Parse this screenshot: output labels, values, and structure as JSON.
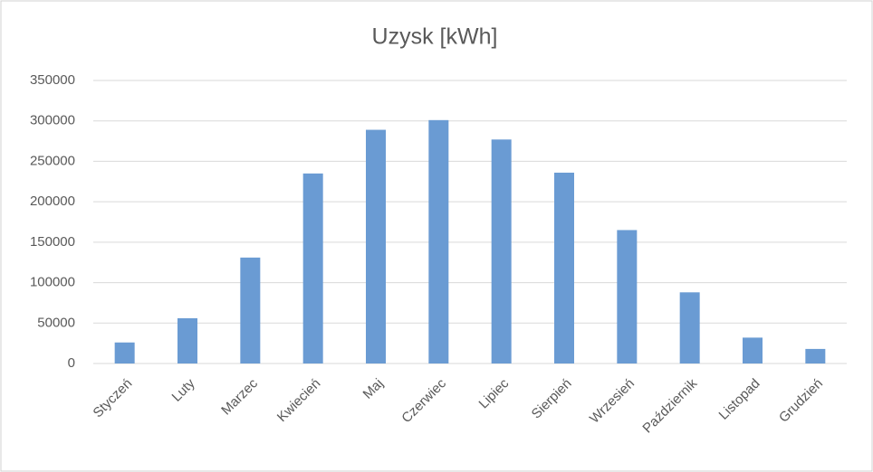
{
  "chart_data": {
    "type": "bar",
    "title": "Uzysk [kWh]",
    "categories": [
      "Styczeń",
      "Luty",
      "Marzec",
      "Kwiecień",
      "Maj",
      "Czerwiec",
      "Lipiec",
      "Sierpień",
      "Wrzesień",
      "Październik",
      "Listopad",
      "Grudzień"
    ],
    "values": [
      26000,
      56000,
      131000,
      235000,
      289000,
      301000,
      277000,
      236000,
      165000,
      88000,
      32000,
      18000
    ],
    "color": "#6a9bd3",
    "ylim": [
      0,
      350000
    ],
    "yticks": [
      0,
      50000,
      100000,
      150000,
      200000,
      250000,
      300000,
      350000
    ],
    "grid": true
  }
}
